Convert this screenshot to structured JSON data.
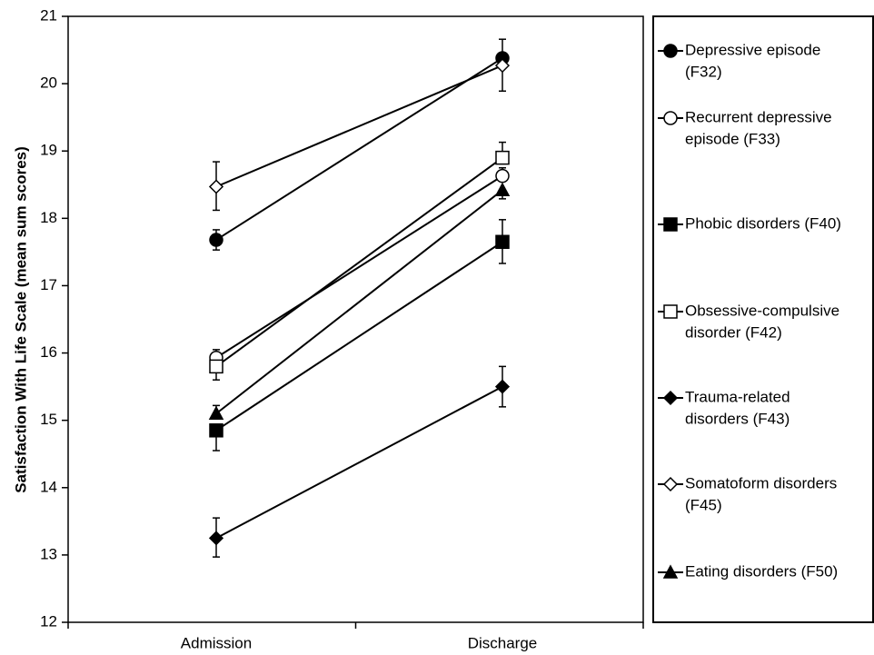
{
  "chart_data": {
    "type": "line",
    "categories": [
      "Admission",
      "Discharge"
    ],
    "ylabel": "Satisfaction With Life Scale (mean sum scores)",
    "xlabel": "",
    "ylim": [
      12,
      21
    ],
    "yticks": [
      12,
      13,
      14,
      15,
      16,
      17,
      18,
      19,
      20,
      21
    ],
    "legend_position": "right",
    "grid": false,
    "series": [
      {
        "name": "Depressive episode (F32)",
        "label_lines": [
          "Depressive episode",
          "(F32)"
        ],
        "marker": "circle",
        "filled": true,
        "values": [
          17.68,
          20.38
        ],
        "error_up": [
          0.15,
          0.28
        ],
        "error_down": [
          0.15,
          0.0
        ]
      },
      {
        "name": "Recurrent depressive episode (F33)",
        "label_lines": [
          "Recurrent depressive",
          "episode (F33)"
        ],
        "marker": "circle",
        "filled": false,
        "values": [
          15.93,
          18.63
        ],
        "error_up": [
          0.12,
          0.12
        ],
        "error_down": [
          0.0,
          0.0
        ]
      },
      {
        "name": "Phobic disorders (F40)",
        "label_lines": [
          "Phobic disorders (F40)"
        ],
        "marker": "square",
        "filled": true,
        "values": [
          14.85,
          17.65
        ],
        "error_up": [
          0.0,
          0.33
        ],
        "error_down": [
          0.3,
          0.32
        ]
      },
      {
        "name": "Obsessive-compulsive disorder (F42)",
        "label_lines": [
          "Obsessive-compulsive",
          "disorder (F42)"
        ],
        "marker": "square",
        "filled": false,
        "values": [
          15.8,
          18.9
        ],
        "error_up": [
          0.0,
          0.23
        ],
        "error_down": [
          0.2,
          0.0
        ]
      },
      {
        "name": "Trauma-related disorders (F43)",
        "label_lines": [
          "Trauma-related",
          "disorders (F43)"
        ],
        "marker": "diamond",
        "filled": true,
        "values": [
          13.25,
          15.5
        ],
        "error_up": [
          0.3,
          0.3
        ],
        "error_down": [
          0.28,
          0.3
        ]
      },
      {
        "name": "Somatoform disorders (F45)",
        "label_lines": [
          "Somatoform disorders",
          "(F45)"
        ],
        "marker": "diamond",
        "filled": false,
        "values": [
          18.47,
          20.27
        ],
        "error_up": [
          0.37,
          0.0
        ],
        "error_down": [
          0.35,
          0.38
        ]
      },
      {
        "name": "Eating disorders (F50)",
        "label_lines": [
          "Eating disorders (F50)"
        ],
        "marker": "triangle",
        "filled": true,
        "values": [
          15.1,
          18.42
        ],
        "error_up": [
          0.12,
          0.0
        ],
        "error_down": [
          0.0,
          0.13
        ]
      }
    ]
  }
}
